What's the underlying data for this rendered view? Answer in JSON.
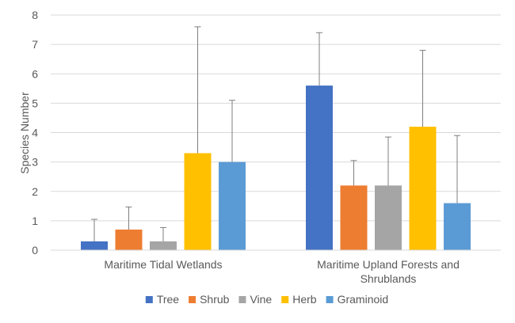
{
  "chart_data": {
    "type": "bar",
    "title": "",
    "xlabel": "",
    "ylabel": "Species Number",
    "ylim": [
      0,
      8
    ],
    "yticks": [
      0,
      1,
      2,
      3,
      4,
      5,
      6,
      7,
      8
    ],
    "grid": true,
    "legend_position": "bottom",
    "categories": [
      [
        "Maritime Tidal Wetlands"
      ],
      [
        "Maritime Upland Forests and",
        "Shrublands"
      ]
    ],
    "series": [
      {
        "name": "Tree",
        "color": "#4472C4",
        "values": [
          0.3,
          5.6
        ],
        "errors": [
          0.75,
          1.8
        ]
      },
      {
        "name": "Shrub",
        "color": "#ED7D31",
        "values": [
          0.7,
          2.2
        ],
        "errors": [
          0.77,
          0.85
        ]
      },
      {
        "name": "Vine",
        "color": "#A5A5A5",
        "values": [
          0.3,
          2.2
        ],
        "errors": [
          0.47,
          1.65
        ]
      },
      {
        "name": "Herb",
        "color": "#FFC000",
        "values": [
          3.3,
          4.2
        ],
        "errors": [
          4.3,
          2.6
        ]
      },
      {
        "name": "Graminoid",
        "color": "#5B9BD5",
        "values": [
          3.0,
          1.6
        ],
        "errors": [
          2.1,
          2.3
        ]
      }
    ]
  }
}
